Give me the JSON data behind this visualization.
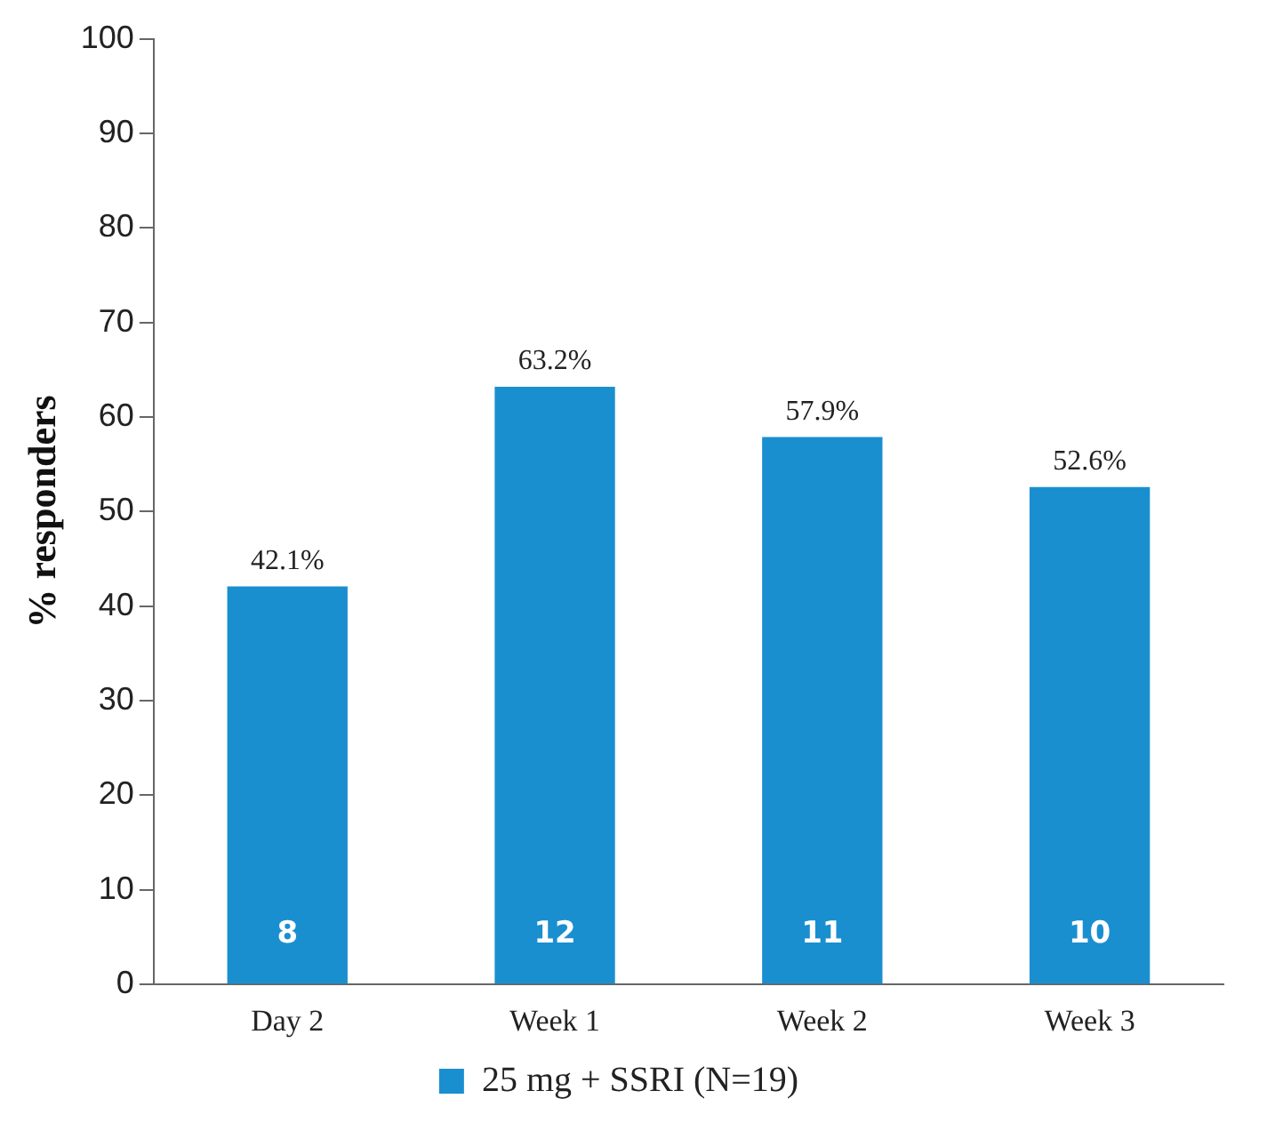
{
  "chart_data": {
    "type": "bar",
    "ylabel": "% responders",
    "categories": [
      "Day 2",
      "Week 1",
      "Week 2",
      "Week 3"
    ],
    "series": [
      {
        "name": "25 mg + SSRI (N=19)",
        "color": "#1a8fd0",
        "values": [
          42.1,
          63.2,
          57.9,
          52.6
        ],
        "value_labels": [
          "42.1%",
          "63.2%",
          "57.9%",
          "52.6%"
        ]
      }
    ],
    "ylim": [
      0,
      100
    ],
    "yticks": [
      0,
      10,
      20,
      30,
      40,
      50,
      60,
      70,
      80,
      90,
      100
    ],
    "grid": false,
    "legend": "bottom",
    "annotations": [
      "8",
      "12",
      "11",
      "10"
    ]
  }
}
